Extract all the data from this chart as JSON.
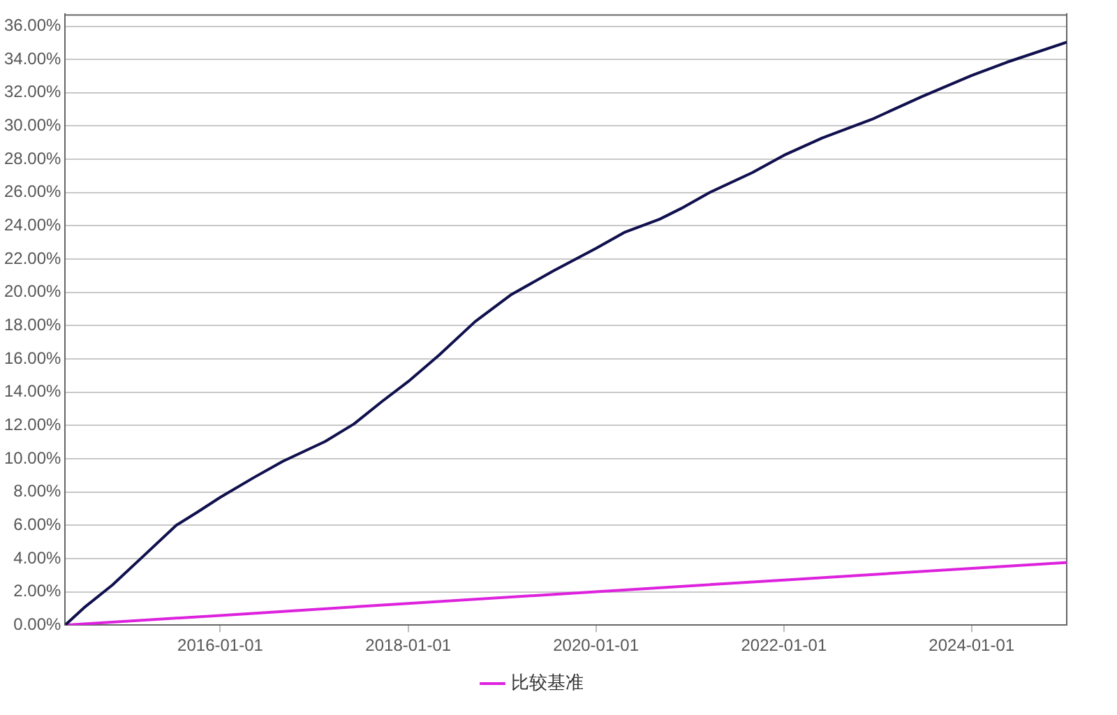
{
  "chart_data": {
    "type": "line",
    "xlim": [
      "2014-05-08",
      "2025-01-05"
    ],
    "xticks": [
      "2016-01-01",
      "2018-01-01",
      "2020-01-01",
      "2022-01-01",
      "2024-01-01"
    ],
    "ylim": [
      0,
      36.72
    ],
    "yticks": [
      {
        "value": 0,
        "label": "0.00%"
      },
      {
        "value": 2,
        "label": "2.00%"
      },
      {
        "value": 4,
        "label": "4.00%"
      },
      {
        "value": 6,
        "label": "6.00%"
      },
      {
        "value": 8,
        "label": "8.00%"
      },
      {
        "value": 10,
        "label": "10.00%"
      },
      {
        "value": 12,
        "label": "12.00%"
      },
      {
        "value": 14,
        "label": "14.00%"
      },
      {
        "value": 16,
        "label": "16.00%"
      },
      {
        "value": 18,
        "label": "18.00%"
      },
      {
        "value": 20,
        "label": "20.00%"
      },
      {
        "value": 22,
        "label": "22.00%"
      },
      {
        "value": 24,
        "label": "24.00%"
      },
      {
        "value": 26,
        "label": "26.00%"
      },
      {
        "value": 28,
        "label": "28.00%"
      },
      {
        "value": 30,
        "label": "30.00%"
      },
      {
        "value": 32,
        "label": "32.00%"
      },
      {
        "value": 34,
        "label": "34.00%"
      },
      {
        "value": 36,
        "label": "36.00%"
      }
    ],
    "grid": "y",
    "legend": "bottom",
    "marker": "none",
    "line_style": "solid",
    "series": [
      {
        "color": "#10104e",
        "x": [
          "2014-05-08",
          "2014-07-20",
          "2014-11-07",
          "2015-02-26",
          "2015-07-14",
          "2015-10-05",
          "2016-01-01",
          "2016-05-12",
          "2016-08-31",
          "2017-02-12",
          "2017-06-03",
          "2017-09-21",
          "2018-01-01",
          "2018-05-02",
          "2018-09-18",
          "2019-02-03",
          "2019-07-18",
          "2020-01-01",
          "2020-04-20",
          "2020-09-05",
          "2020-11-27",
          "2021-03-18",
          "2021-08-31",
          "2022-01-01",
          "2022-05-30",
          "2022-12-09",
          "2023-06-20",
          "2024-01-01",
          "2024-05-18",
          "2025-01-05"
        ],
        "values": [
          0,
          1.04,
          2.4,
          4.0,
          6.0,
          6.8,
          7.68,
          8.88,
          9.84,
          11.04,
          12.08,
          13.44,
          14.64,
          16.24,
          18.24,
          19.84,
          21.28,
          22.64,
          23.6,
          24.4,
          25.04,
          26.0,
          27.2,
          28.24,
          29.28,
          30.4,
          31.76,
          33.04,
          33.84,
          35.04
        ]
      },
      {
        "name": "比较基准",
        "color": "#dd22dd",
        "x": [
          "2014-05-08",
          "2016-01-01",
          "2018-01-01",
          "2020-01-01",
          "2022-01-01",
          "2024-01-01",
          "2025-01-05"
        ],
        "values": [
          0,
          0.58,
          1.3,
          2.0,
          2.71,
          3.41,
          3.76
        ]
      }
    ]
  }
}
